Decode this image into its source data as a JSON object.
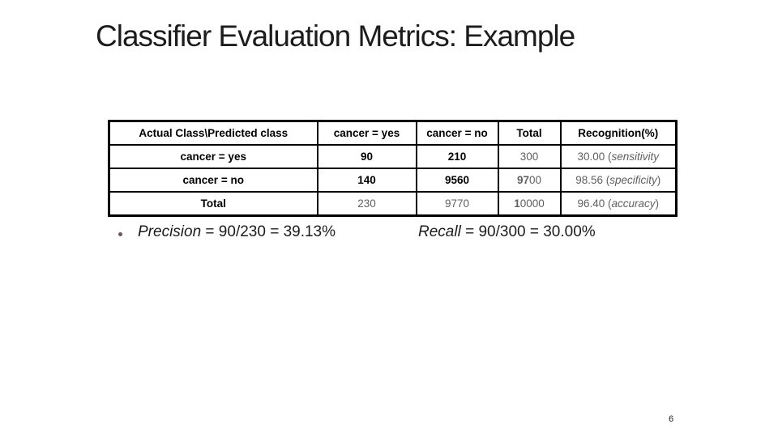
{
  "slide": {
    "title": "Classifier Evaluation Metrics: Example",
    "page_number": "6"
  },
  "metrics_table": {
    "header": [
      [
        {
          "t": "Actual Class\\Predicted class",
          "b": true
        }
      ],
      [
        {
          "t": "cancer = yes",
          "b": true
        }
      ],
      [
        {
          "t": "cancer = no",
          "b": true
        }
      ],
      [
        {
          "t": "Total",
          "b": true
        }
      ],
      [
        {
          "t": "Recognition(%)",
          "b": true
        }
      ]
    ],
    "rows": [
      [
        [
          {
            "t": "cancer = yes",
            "b": true
          }
        ],
        [
          {
            "t": "90",
            "b": true
          }
        ],
        [
          {
            "t": "210",
            "b": true
          }
        ],
        [
          {
            "t": "300",
            "g": true
          }
        ],
        [
          {
            "t": "30.00 (",
            "g": true
          },
          {
            "t": "sensitivity",
            "g": true,
            "i": true
          }
        ]
      ],
      [
        [
          {
            "t": "cancer = no",
            "b": true
          }
        ],
        [
          {
            "t": "140",
            "b": true
          }
        ],
        [
          {
            "t": "9560",
            "b": true
          }
        ],
        [
          {
            "t": "97",
            "b": true,
            "g": true
          },
          {
            "t": "00",
            "g": true
          }
        ],
        [
          {
            "t": "98.56 (",
            "g": true
          },
          {
            "t": "specificity",
            "g": true,
            "i": true
          },
          {
            "t": ")",
            "g": true
          }
        ]
      ],
      [
        [
          {
            "t": "Total",
            "b": true
          }
        ],
        [
          {
            "t": "230",
            "g": true
          }
        ],
        [
          {
            "t": "9770",
            "g": true
          }
        ],
        [
          {
            "t": "1",
            "b": true,
            "g": true
          },
          {
            "t": "0000",
            "g": true
          }
        ],
        [
          {
            "t": "96.40 (",
            "g": true
          },
          {
            "t": "accuracy",
            "g": true,
            "i": true
          },
          {
            "t": ")",
            "g": true
          }
        ]
      ]
    ]
  },
  "notes": {
    "precision": [
      {
        "t": "Precision",
        "i": true
      },
      {
        "t": " = 90/230 = 39.13%"
      }
    ],
    "recall": [
      {
        "t": "Recall",
        "i": true
      },
      {
        "t": " = 90/300 = 30.00%"
      }
    ]
  },
  "colors": {
    "text_black": "#1c1c1c",
    "text_gray": "#606060",
    "bullet_dot": "#6b5560",
    "table_border": "#000000"
  }
}
